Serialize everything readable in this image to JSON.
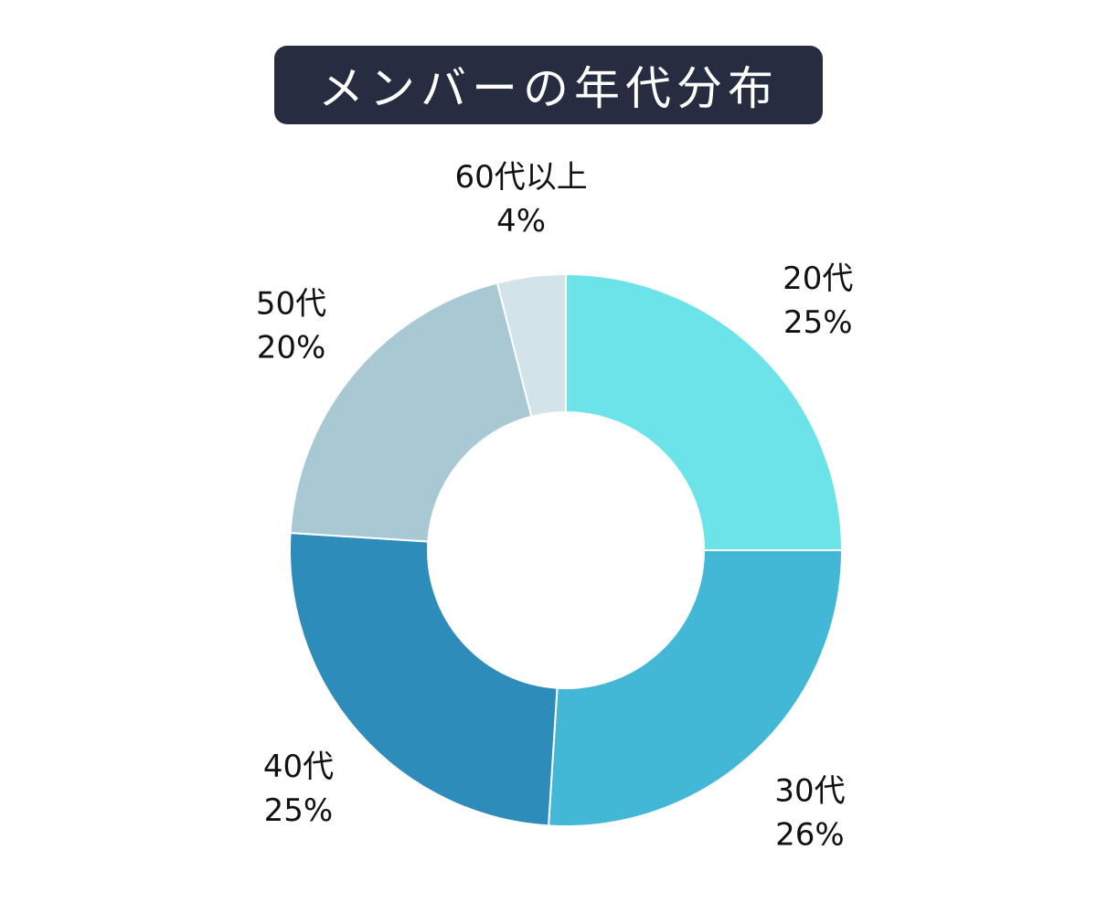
{
  "header": {
    "title": "メンバーの年代分布"
  },
  "chart_data": {
    "type": "pie",
    "donut": true,
    "title": "メンバーの年代分布",
    "start_angle_deg": 0,
    "direction": "clockwise",
    "categories": [
      "20代",
      "30代",
      "40代",
      "50代",
      "60代以上"
    ],
    "values": [
      25,
      26,
      25,
      20,
      4
    ],
    "value_labels": [
      "25%",
      "26%",
      "25%",
      "20%",
      "4%"
    ],
    "colors": [
      "#6ce3e8",
      "#42b7d6",
      "#2e8cbb",
      "#a8c9d3",
      "#d3e3ea"
    ],
    "legend": "none"
  }
}
